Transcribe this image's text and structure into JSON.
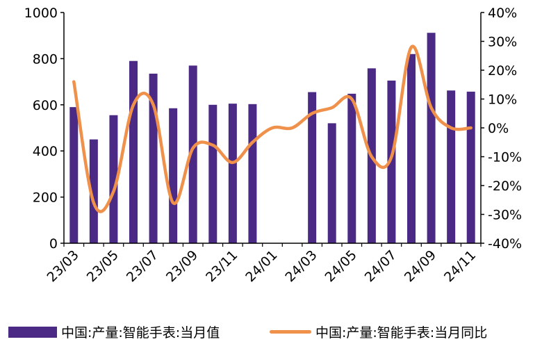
{
  "chart_data": {
    "type": "bar",
    "title": "",
    "categories": [
      "23/03",
      "23/04",
      "23/05",
      "23/06",
      "23/07",
      "23/08",
      "23/09",
      "23/10",
      "23/11",
      "23/12",
      "24/01",
      "24/02",
      "24/03",
      "24/04",
      "24/05",
      "24/06",
      "24/07",
      "24/08",
      "24/09",
      "24/10",
      "24/11"
    ],
    "x_tick_labels": [
      "23/03",
      "23/05",
      "23/07",
      "23/09",
      "23/11",
      "24/01",
      "24/03",
      "24/05",
      "24/07",
      "24/09",
      "24/11"
    ],
    "series": [
      {
        "name": "中国:产量:智能手表:当月值",
        "type": "bar",
        "axis": "left",
        "color": "#4b2a85",
        "values": [
          590,
          450,
          555,
          790,
          735,
          585,
          770,
          600,
          605,
          603,
          null,
          null,
          655,
          520,
          648,
          758,
          705,
          820,
          912,
          662,
          657
        ]
      },
      {
        "name": "中国:产量:智能手表:当月同比",
        "type": "line",
        "axis": "right",
        "color": "#f0914b",
        "values": [
          16,
          -26,
          -22,
          8,
          8,
          -26,
          -7,
          -6,
          -12,
          -5,
          0,
          0,
          5,
          7,
          10,
          -10,
          -10,
          28,
          7,
          0,
          0
        ]
      }
    ],
    "y_left": {
      "ylim": [
        0,
        1000
      ],
      "ticks": [
        "0",
        "200",
        "400",
        "600",
        "800",
        "1000"
      ]
    },
    "y_right": {
      "ylim": [
        -40,
        40
      ],
      "ticks": [
        "-40%",
        "-30%",
        "-20%",
        "-10%",
        "0%",
        "10%",
        "20%",
        "30%",
        "40%"
      ]
    },
    "legend": {
      "position": "bottom"
    }
  }
}
